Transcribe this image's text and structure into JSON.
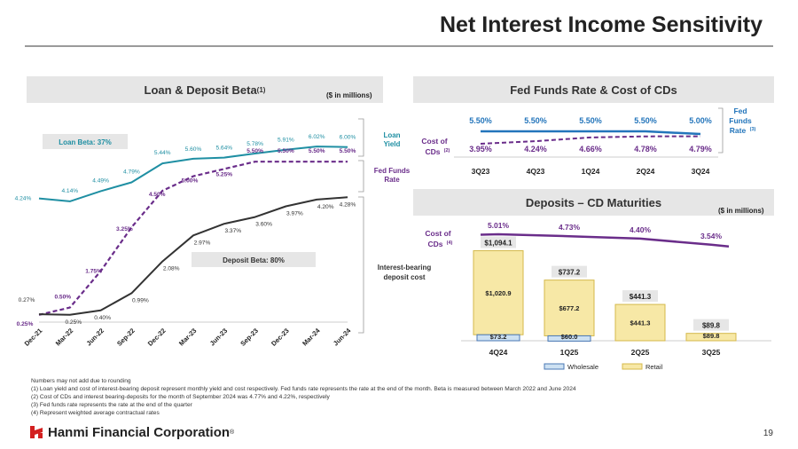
{
  "title": "Net Interest Income Sensitivity",
  "colors": {
    "teal": "#1f8fa3",
    "purple": "#6a2d8a",
    "dark": "#333333",
    "blue": "#2375bb",
    "gold": "#f7e8a6",
    "gold_border": "#d4b94b",
    "blue_fill": "#cde1f2",
    "blue_border": "#4a78b4"
  },
  "left_panel": {
    "header": "Loan & Deposit Beta",
    "header_sup": "(1)",
    "unit": "($ in millions)",
    "loan_beta_label": "Loan Beta: 37%",
    "deposit_beta_label": "Deposit Beta: 80%",
    "legend": {
      "loan_yield": [
        "Loan",
        "Yield"
      ],
      "fed_funds": [
        "Fed Funds",
        "Rate"
      ],
      "deposit_cost": [
        "Interest-bearing",
        "deposit cost"
      ]
    }
  },
  "right_top": {
    "header": "Fed Funds Rate & Cost of CDs",
    "cost_label": [
      "Cost of",
      "CDs"
    ],
    "cost_sup": "(2)",
    "fed_label": [
      "Fed",
      "Funds",
      "Rate"
    ],
    "fed_sup": "(3)"
  },
  "right_bottom": {
    "header": "Deposits – CD Maturities",
    "unit": "($ in millions)",
    "cost_label": [
      "Cost of",
      "CDs"
    ],
    "cost_sup": "(4)",
    "legend": [
      "Wholesale",
      "Retail"
    ]
  },
  "chart_data": [
    {
      "type": "line",
      "title": "Loan & Deposit Beta",
      "categories": [
        "Dec-21",
        "Mar-22",
        "Jun-22",
        "Sep-22",
        "Dec-22",
        "Mar-23",
        "Jun-23",
        "Sep-23",
        "Dec-23",
        "Mar-24",
        "Jun-24"
      ],
      "ylim": [
        0,
        6.6
      ],
      "series": [
        {
          "name": "Loan Yield",
          "style": "solid",
          "values": [
            4.24,
            4.14,
            4.49,
            4.79,
            5.44,
            5.6,
            5.64,
            5.78,
            5.91,
            6.02,
            6.0
          ],
          "labels": [
            "4.24%",
            "4.14%",
            "4.49%",
            "4.79%",
            "5.44%",
            "5.60%",
            "5.64%",
            "5.78%",
            "5.91%",
            "6.02%",
            "6.00%"
          ]
        },
        {
          "name": "Fed Funds Rate",
          "style": "dashed",
          "values": [
            0.25,
            0.5,
            1.75,
            3.25,
            4.5,
            5.0,
            5.25,
            5.5,
            5.5,
            5.5,
            5.5
          ],
          "labels": [
            "0.25%",
            "0.50%",
            "1.75%",
            "3.25%",
            "4.50%",
            "5.00%",
            "5.25%",
            "5.50%",
            "5.50%",
            "5.50%",
            "5.50%"
          ]
        },
        {
          "name": "Interest-bearing deposit cost",
          "style": "solid",
          "values": [
            0.27,
            0.25,
            0.4,
            0.99,
            2.08,
            2.97,
            3.37,
            3.6,
            3.97,
            4.2,
            4.28
          ],
          "labels": [
            "0.27%",
            "0.25%",
            "0.40%",
            "0.99%",
            "2.08%",
            "2.97%",
            "3.37%",
            "3.60%",
            "3.97%",
            "4.20%",
            "4.28%"
          ]
        }
      ]
    },
    {
      "type": "line",
      "title": "Fed Funds Rate & Cost of CDs",
      "categories": [
        "3Q23",
        "4Q23",
        "1Q24",
        "2Q24",
        "3Q24"
      ],
      "series": [
        {
          "name": "Fed Funds Rate",
          "values": [
            5.5,
            5.5,
            5.5,
            5.5,
            5.0
          ],
          "labels": [
            "5.50%",
            "5.50%",
            "5.50%",
            "5.50%",
            "5.00%"
          ]
        },
        {
          "name": "Cost of CDs",
          "values": [
            3.95,
            4.24,
            4.66,
            4.78,
            4.79
          ],
          "labels": [
            "3.95%",
            "4.24%",
            "4.66%",
            "4.78%",
            "4.79%"
          ]
        }
      ]
    },
    {
      "type": "bar",
      "title": "Deposits – CD Maturities",
      "stacked": true,
      "categories": [
        "4Q24",
        "1Q25",
        "2Q25",
        "3Q25"
      ],
      "ylim": [
        0,
        1100
      ],
      "series": [
        {
          "name": "Wholesale",
          "values": [
            73.2,
            60.0,
            0,
            0
          ],
          "labels": [
            "$73.2",
            "$60.0",
            "",
            ""
          ]
        },
        {
          "name": "Retail",
          "values": [
            1020.9,
            677.2,
            441.3,
            89.8
          ],
          "labels": [
            "$1,020.9",
            "$677.2",
            "$441.3",
            "$89.8"
          ]
        }
      ],
      "totals": [
        "$1,094.1",
        "$737.2",
        "$441.3",
        "$89.8"
      ],
      "cost_of_cds": {
        "values": [
          5.01,
          4.73,
          4.4,
          3.54
        ],
        "labels": [
          "5.01%",
          "4.73%",
          "4.40%",
          "3.54%"
        ]
      }
    }
  ],
  "footnotes": [
    "Numbers may not add due to rounding",
    "(1)    Loan yield and cost of interest-bearing deposit represent monthly yield and cost respectively. Fed funds rate represents the rate at the end of the month. Beta is measured between March 2022 and June 2024",
    "(2)    Cost of CDs and interest bearing-deposits for the month of September 2024 was 4.77% and 4.22%, respectively",
    "(3)    Fed funds rate represents the rate at the end of the quarter",
    "(4)    Represent weighted average contractual rates"
  ],
  "logo_text": "Hanmi Financial Corporation",
  "logo_tm": "®",
  "page_number": "19"
}
